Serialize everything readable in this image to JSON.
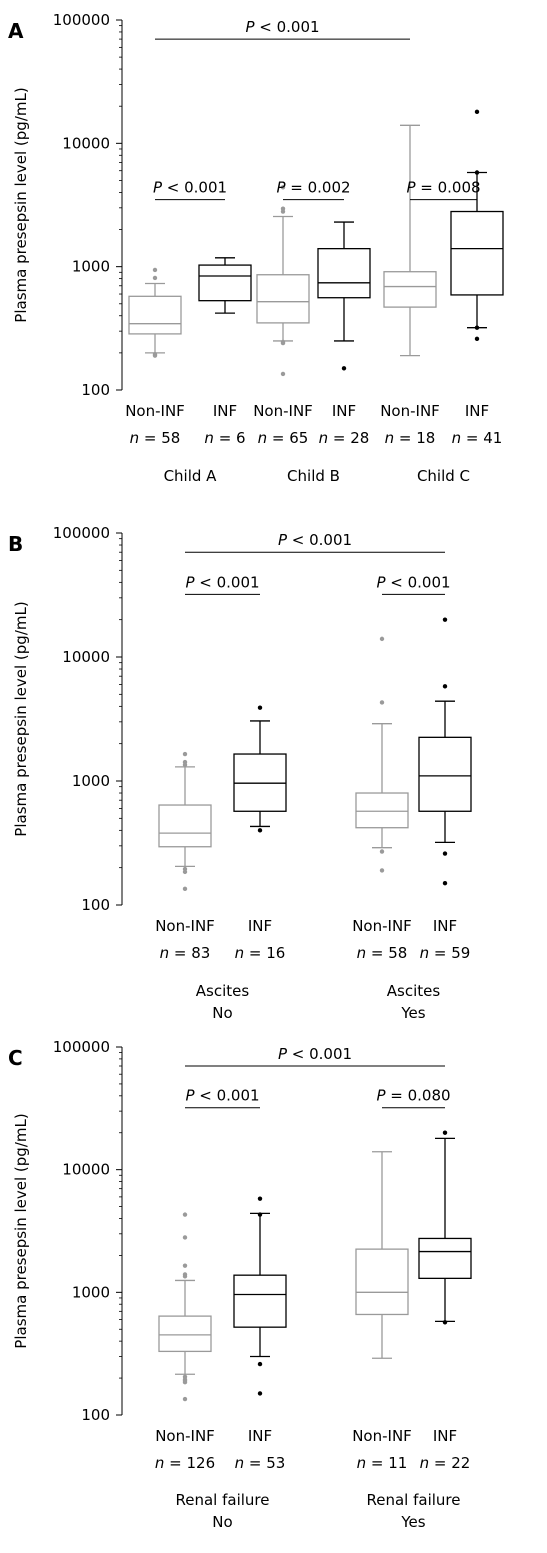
{
  "figure": {
    "y_axis_label": "Plasma presepsin level (pg/mL)",
    "y_ticks": [
      "100",
      "1000",
      "10000",
      "100000"
    ]
  },
  "chart_data": [
    {
      "panel": "A",
      "type": "box",
      "scale": "log",
      "ylim": [
        100,
        100000
      ],
      "ylabel": "Plasma presepsin level (pg/mL)",
      "yticks": [
        100,
        1000,
        10000,
        100000
      ],
      "groups": [
        {
          "name": "Child A",
          "boxes": [
            {
              "label": "Non-INF",
              "n": "n = 58",
              "color": "#9a9a9a",
              "q1": 285,
              "median": 345,
              "q3": 575,
              "wlo": 200,
              "whi": 730,
              "outliers": [
                190,
                195,
                810,
                940
              ]
            },
            {
              "label": "INF",
              "n": "n = 6",
              "color": "#000000",
              "q1": 530,
              "median": 840,
              "q3": 1030,
              "wlo": 420,
              "whi": 1180,
              "outliers": []
            }
          ]
        },
        {
          "name": "Child B",
          "boxes": [
            {
              "label": "Non-INF",
              "n": "n = 65",
              "color": "#9a9a9a",
              "q1": 350,
              "median": 520,
              "q3": 860,
              "wlo": 250,
              "whi": 2550,
              "outliers": [
                135,
                240,
                245,
                2800,
                2950,
                4400
              ]
            },
            {
              "label": "INF",
              "n": "n = 28",
              "color": "#000000",
              "q1": 560,
              "median": 740,
              "q3": 1400,
              "wlo": 250,
              "whi": 2300,
              "outliers": [
                150
              ]
            }
          ]
        },
        {
          "name": "Child C",
          "boxes": [
            {
              "label": "Non-INF",
              "n": "n = 18",
              "color": "#9a9a9a",
              "q1": 470,
              "median": 690,
              "q3": 910,
              "wlo": 190,
              "whi": 14000,
              "outliers": []
            },
            {
              "label": "INF",
              "n": "n = 41",
              "color": "#000000",
              "q1": 590,
              "median": 1400,
              "q3": 2800,
              "wlo": 320,
              "whi": 5800,
              "outliers": [
                260,
                320,
                5800,
                18000
              ]
            }
          ]
        }
      ],
      "comparisons": [
        {
          "p": "< 0.001",
          "from": [
            0,
            0
          ],
          "to": [
            0,
            1
          ],
          "y": 3500
        },
        {
          "p": "= 0.002",
          "from": [
            1,
            0
          ],
          "to": [
            1,
            1
          ],
          "y": 3500
        },
        {
          "p": "= 0.008",
          "from": [
            2,
            0
          ],
          "to": [
            2,
            1
          ],
          "y": 3500
        },
        {
          "p": "< 0.001",
          "from": [
            0,
            0
          ],
          "to": [
            2,
            0
          ],
          "y": 70000
        }
      ]
    },
    {
      "panel": "B",
      "type": "box",
      "scale": "log",
      "ylim": [
        100,
        100000
      ],
      "ylabel": "Plasma presepsin level (pg/mL)",
      "yticks": [
        100,
        1000,
        10000,
        100000
      ],
      "groups": [
        {
          "name": "Ascites No",
          "line1": "Ascites",
          "line2": "No",
          "boxes": [
            {
              "label": "Non-INF",
              "n": "n = 83",
              "color": "#9a9a9a",
              "q1": 295,
              "median": 380,
              "q3": 640,
              "wlo": 205,
              "whi": 1300,
              "outliers": [
                135,
                185,
                195,
                1350,
                1420,
                1650
              ]
            },
            {
              "label": "INF",
              "n": "n = 16",
              "color": "#000000",
              "q1": 570,
              "median": 960,
              "q3": 1650,
              "wlo": 430,
              "whi": 3050,
              "outliers": [
                400,
                3900
              ]
            }
          ]
        },
        {
          "name": "Ascites Yes",
          "line1": "Ascites",
          "line2": "Yes",
          "boxes": [
            {
              "label": "Non-INF",
              "n": "n = 58",
              "color": "#9a9a9a",
              "q1": 420,
              "median": 570,
              "q3": 800,
              "wlo": 290,
              "whi": 2900,
              "outliers": [
                190,
                270,
                4300,
                14000
              ]
            },
            {
              "label": "INF",
              "n": "n = 59",
              "color": "#000000",
              "q1": 570,
              "median": 1100,
              "q3": 2250,
              "wlo": 320,
              "whi": 4400,
              "outliers": [
                150,
                260,
                5800,
                20000
              ]
            }
          ]
        }
      ],
      "comparisons": [
        {
          "p": "< 0.001",
          "from": [
            0,
            0
          ],
          "to": [
            0,
            1
          ],
          "y": 32000
        },
        {
          "p": "< 0.001",
          "from": [
            1,
            0
          ],
          "to": [
            1,
            1
          ],
          "y": 32000
        },
        {
          "p": "< 0.001",
          "from": [
            0,
            0
          ],
          "to": [
            1,
            1
          ],
          "y": 70000
        }
      ]
    },
    {
      "panel": "C",
      "type": "box",
      "scale": "log",
      "ylim": [
        100,
        100000
      ],
      "ylabel": "Plasma presepsin level (pg/mL)",
      "yticks": [
        100,
        1000,
        10000,
        100000
      ],
      "groups": [
        {
          "name": "Renal failure No",
          "line1": "Renal failure",
          "line2": "No",
          "boxes": [
            {
              "label": "Non-INF",
              "n": "n = 126",
              "color": "#9a9a9a",
              "q1": 330,
              "median": 450,
              "q3": 640,
              "wlo": 215,
              "whi": 1250,
              "outliers": [
                135,
                185,
                190,
                195,
                205,
                1350,
                1400,
                1650,
                2800,
                4300
              ]
            },
            {
              "label": "INF",
              "n": "n = 53",
              "color": "#000000",
              "q1": 520,
              "median": 960,
              "q3": 1380,
              "wlo": 300,
              "whi": 4400,
              "outliers": [
                150,
                260,
                4300,
                5800
              ]
            }
          ]
        },
        {
          "name": "Renal failure Yes",
          "line1": "Renal failure",
          "line2": "Yes",
          "boxes": [
            {
              "label": "Non-INF",
              "n": "n = 11",
              "color": "#9a9a9a",
              "q1": 660,
              "median": 1000,
              "q3": 2250,
              "wlo": 290,
              "whi": 14000,
              "outliers": []
            },
            {
              "label": "INF",
              "n": "n = 22",
              "color": "#000000",
              "q1": 1300,
              "median": 2150,
              "q3": 2750,
              "wlo": 580,
              "whi": 18000,
              "outliers": [
                570,
                20000
              ]
            }
          ]
        }
      ],
      "comparisons": [
        {
          "p": "< 0.001",
          "from": [
            0,
            0
          ],
          "to": [
            0,
            1
          ],
          "y": 32000
        },
        {
          "p": "= 0.080",
          "from": [
            1,
            0
          ],
          "to": [
            1,
            1
          ],
          "y": 32000
        },
        {
          "p": "< 0.001",
          "from": [
            0,
            0
          ],
          "to": [
            1,
            1
          ],
          "y": 70000
        }
      ]
    }
  ]
}
